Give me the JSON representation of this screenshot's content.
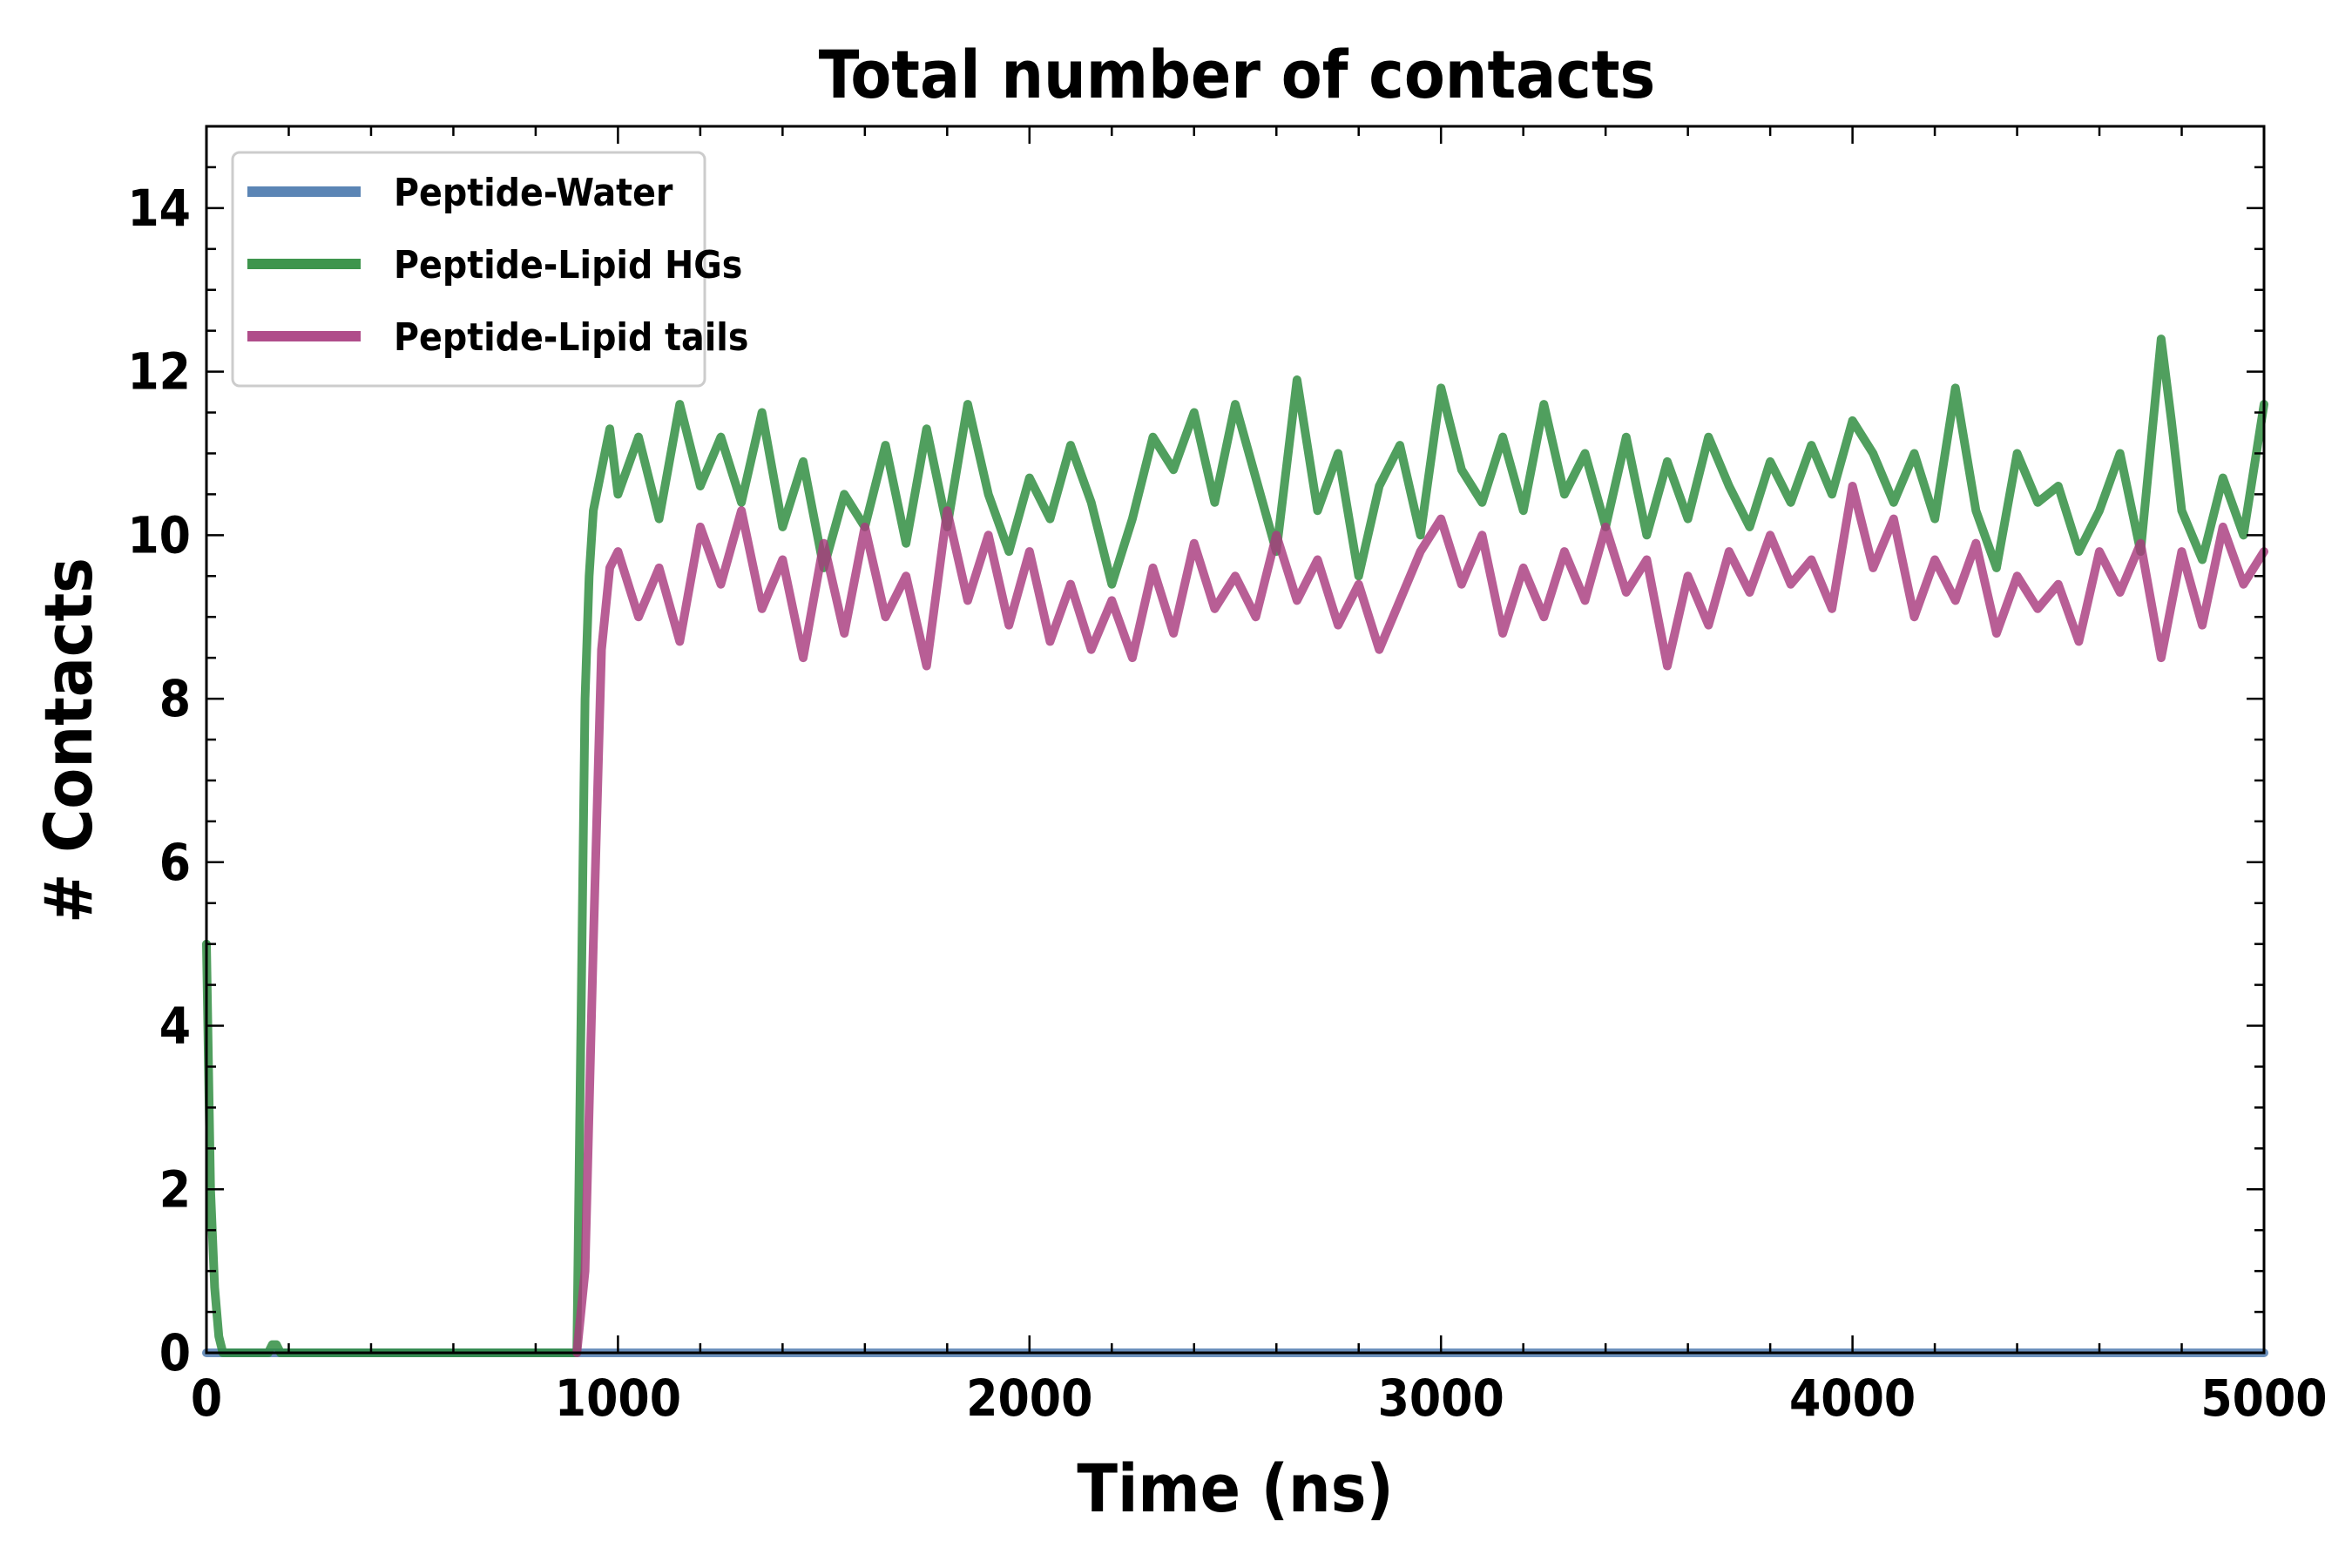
{
  "chart_data": {
    "type": "line",
    "title": "Total number of contacts",
    "xlabel": "Time (ns)",
    "ylabel": "# Contacts",
    "xlim": [
      0,
      5000
    ],
    "ylim": [
      0,
      15
    ],
    "xticks": [
      0,
      1000,
      2000,
      3000,
      4000,
      5000
    ],
    "yticks": [
      0,
      2,
      4,
      6,
      8,
      10,
      12,
      14
    ],
    "xtick_labels": [
      "0",
      "1000",
      "2000",
      "3000",
      "4000",
      "5000"
    ],
    "ytick_labels": [
      "0",
      "2",
      "4",
      "6",
      "8",
      "10",
      "12",
      "14"
    ],
    "grid": false,
    "legend_position": "top-left",
    "series": [
      {
        "name": "Peptide-Water",
        "color": "#4a78ad",
        "x": [
          0,
          5000
        ],
        "y": [
          0,
          0
        ]
      },
      {
        "name": "Peptide-Lipid HGs",
        "color": "#2a8a3a",
        "x": [
          0,
          10,
          20,
          30,
          40,
          150,
          160,
          170,
          180,
          900,
          910,
          920,
          930,
          940,
          960,
          980,
          1000,
          1050,
          1100,
          1150,
          1200,
          1250,
          1300,
          1350,
          1400,
          1450,
          1500,
          1550,
          1600,
          1650,
          1700,
          1750,
          1800,
          1850,
          1900,
          1950,
          2000,
          2050,
          2100,
          2150,
          2200,
          2250,
          2300,
          2350,
          2400,
          2450,
          2500,
          2550,
          2600,
          2650,
          2700,
          2750,
          2800,
          2850,
          2900,
          2950,
          3000,
          3050,
          3100,
          3150,
          3200,
          3250,
          3300,
          3350,
          3400,
          3450,
          3500,
          3550,
          3600,
          3650,
          3700,
          3750,
          3800,
          3850,
          3900,
          3950,
          4000,
          4050,
          4100,
          4150,
          4200,
          4250,
          4300,
          4350,
          4400,
          4450,
          4500,
          4550,
          4600,
          4650,
          4700,
          4750,
          4775,
          4800,
          4850,
          4900,
          4950,
          5000
        ],
        "y": [
          5.0,
          2.0,
          0.8,
          0.2,
          0.0,
          0.0,
          0.1,
          0.1,
          0.0,
          0.0,
          4.0,
          8.0,
          9.5,
          10.3,
          10.8,
          11.3,
          10.5,
          11.2,
          10.2,
          11.6,
          10.6,
          11.2,
          10.4,
          11.5,
          10.1,
          10.9,
          9.6,
          10.5,
          10.1,
          11.1,
          9.9,
          11.3,
          10.1,
          11.6,
          10.5,
          9.8,
          10.7,
          10.2,
          11.1,
          10.4,
          9.4,
          10.2,
          11.2,
          10.8,
          11.5,
          10.4,
          11.6,
          10.7,
          9.8,
          11.9,
          10.3,
          11.0,
          9.5,
          10.6,
          11.1,
          10.0,
          11.8,
          10.8,
          10.4,
          11.2,
          10.3,
          11.6,
          10.5,
          11.0,
          10.1,
          11.2,
          10.0,
          10.9,
          10.2,
          11.2,
          10.6,
          10.1,
          10.9,
          10.4,
          11.1,
          10.5,
          11.4,
          11.0,
          10.4,
          11.0,
          10.2,
          11.8,
          10.3,
          9.6,
          11.0,
          10.4,
          10.6,
          9.8,
          10.3,
          11.0,
          9.8,
          12.4,
          11.4,
          10.3,
          9.7,
          10.7,
          10.0,
          11.6
        ]
      },
      {
        "name": "Peptide-Lipid tails",
        "color": "#a83a7e",
        "x": [
          900,
          920,
          940,
          960,
          980,
          1000,
          1050,
          1100,
          1150,
          1200,
          1250,
          1300,
          1350,
          1400,
          1450,
          1500,
          1550,
          1600,
          1650,
          1700,
          1750,
          1800,
          1850,
          1900,
          1950,
          2000,
          2050,
          2100,
          2150,
          2200,
          2250,
          2300,
          2350,
          2400,
          2450,
          2500,
          2550,
          2600,
          2650,
          2700,
          2750,
          2800,
          2850,
          2900,
          2950,
          3000,
          3050,
          3100,
          3150,
          3200,
          3250,
          3300,
          3350,
          3400,
          3450,
          3500,
          3550,
          3600,
          3650,
          3700,
          3750,
          3800,
          3850,
          3900,
          3950,
          4000,
          4050,
          4100,
          4150,
          4200,
          4250,
          4300,
          4350,
          4400,
          4450,
          4500,
          4550,
          4600,
          4650,
          4700,
          4750,
          4800,
          4850,
          4900,
          4950,
          5000
        ],
        "y": [
          0.0,
          1.0,
          5.0,
          8.6,
          9.6,
          9.8,
          9.0,
          9.6,
          8.7,
          10.1,
          9.4,
          10.3,
          9.1,
          9.7,
          8.5,
          9.9,
          8.8,
          10.1,
          9.0,
          9.5,
          8.4,
          10.3,
          9.2,
          10.0,
          8.9,
          9.8,
          8.7,
          9.4,
          8.6,
          9.2,
          8.5,
          9.6,
          8.8,
          9.9,
          9.1,
          9.5,
          9.0,
          10.0,
          9.2,
          9.7,
          8.9,
          9.4,
          8.6,
          9.2,
          9.8,
          10.2,
          9.4,
          10.0,
          8.8,
          9.6,
          9.0,
          9.8,
          9.2,
          10.1,
          9.3,
          9.7,
          8.4,
          9.5,
          8.9,
          9.8,
          9.3,
          10.0,
          9.4,
          9.7,
          9.1,
          10.6,
          9.6,
          10.2,
          9.0,
          9.7,
          9.2,
          9.9,
          8.8,
          9.5,
          9.1,
          9.4,
          8.7,
          9.8,
          9.3,
          9.9,
          8.5,
          9.8,
          8.9,
          10.1,
          9.4,
          9.8
        ]
      }
    ]
  }
}
